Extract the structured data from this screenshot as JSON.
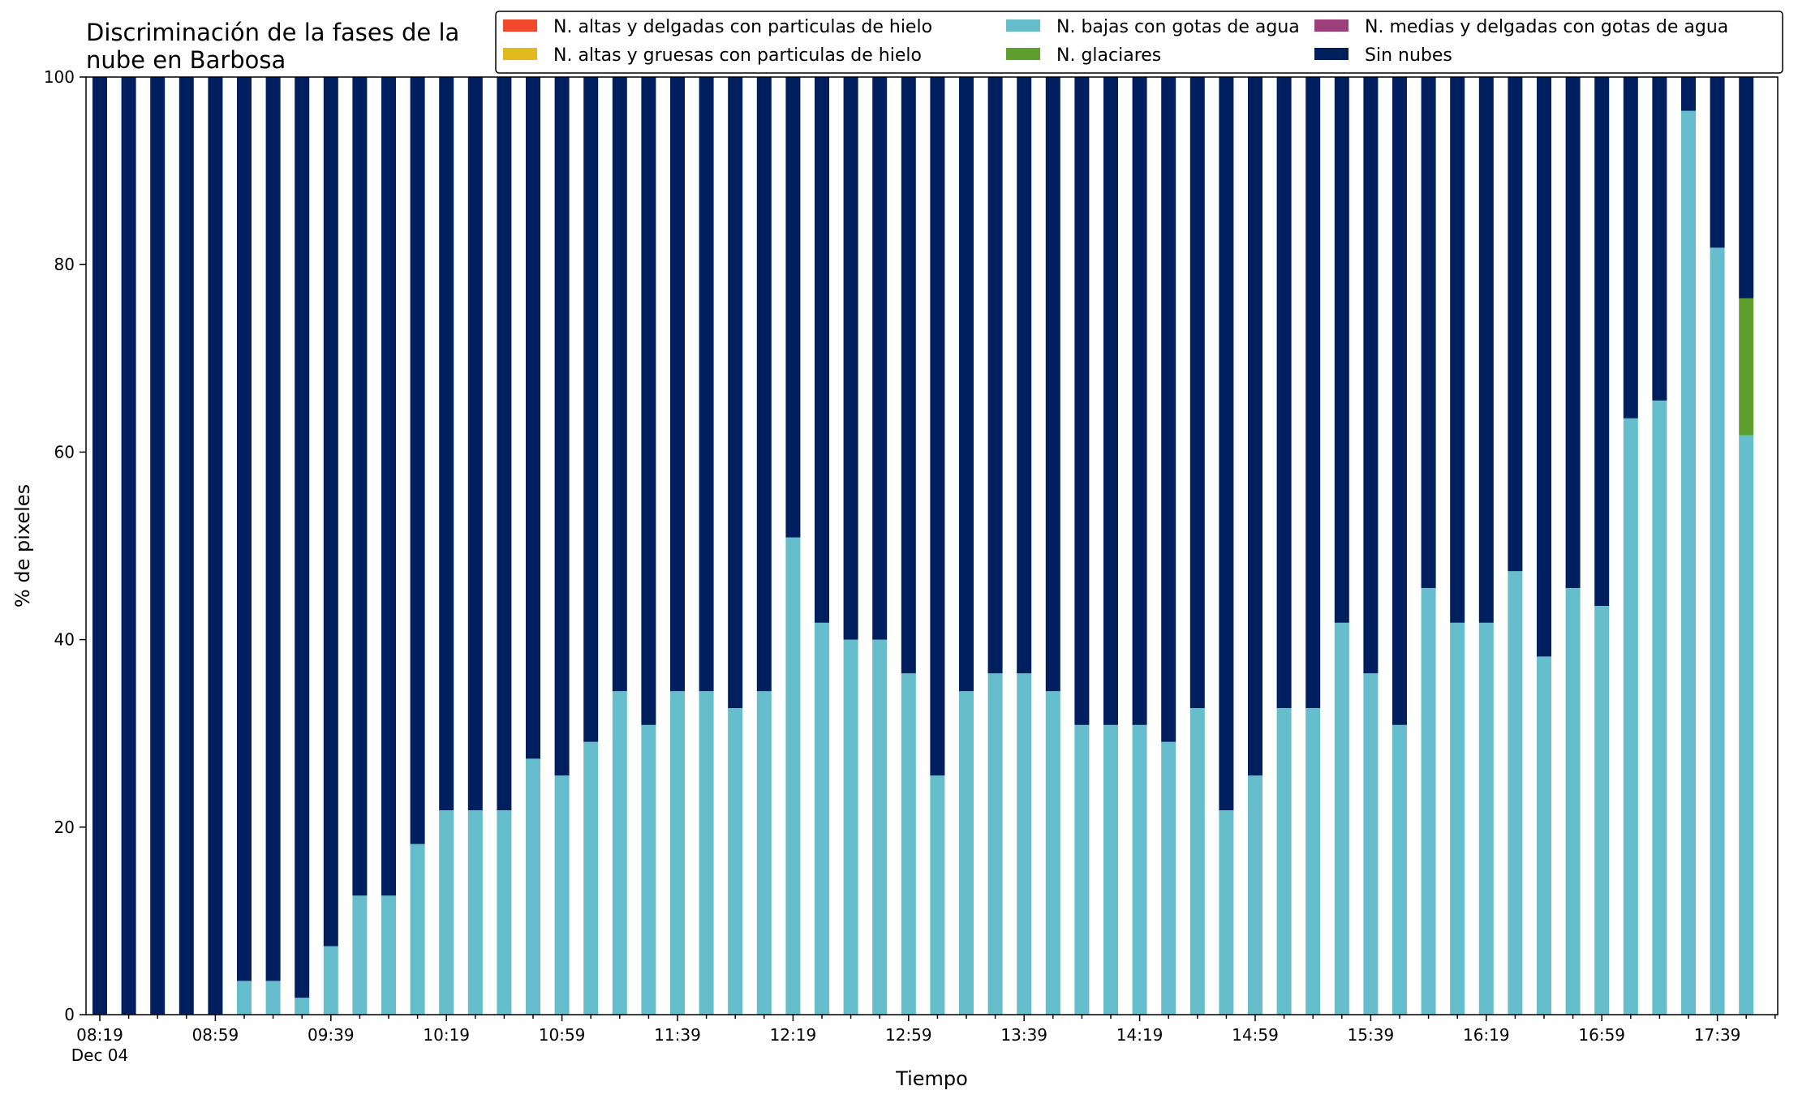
{
  "chart_data": {
    "type": "bar",
    "stacked": true,
    "title": "Discriminación de la fases de la nube en Barbosa",
    "title_lines": [
      "Discriminación de la fases de la",
      "nube en Barbosa"
    ],
    "xlabel": "Tiempo",
    "ylabel": "% de pixeles",
    "ylim": [
      0,
      100
    ],
    "yticks": [
      0,
      20,
      40,
      60,
      80,
      100
    ],
    "x_start_time": "08:19",
    "x_interval_minutes": 10,
    "x_tick_labels": [
      "08:19",
      "08:59",
      "09:39",
      "10:19",
      "10:59",
      "11:39",
      "12:19",
      "12:59",
      "13:39",
      "14:19",
      "14:59",
      "15:39",
      "16:19",
      "16:59",
      "17:39"
    ],
    "x_date_label": "Dec 04",
    "legend_position": "top-right",
    "legend_columns": 3,
    "series": [
      {
        "name": "N. altas y delgadas con particulas de hielo",
        "color": "#ef4a2b",
        "values": [
          0,
          0,
          0,
          0,
          0,
          0,
          0,
          0,
          0,
          0,
          0,
          0,
          0,
          0,
          0,
          0,
          0,
          0,
          0,
          0,
          0,
          0,
          0,
          0,
          0,
          0,
          0,
          0,
          0,
          0,
          0,
          0,
          0,
          0,
          0,
          0,
          0,
          0,
          0,
          0,
          0,
          0,
          0,
          0,
          0,
          0,
          0,
          0,
          0,
          0,
          0,
          0,
          0,
          0,
          0,
          0,
          0,
          0
        ]
      },
      {
        "name": "N. altas y gruesas con particulas de hielo",
        "color": "#e4b91e",
        "values": [
          0,
          0,
          0,
          0,
          0,
          0,
          0,
          0,
          0,
          0,
          0,
          0,
          0,
          0,
          0,
          0,
          0,
          0,
          0,
          0,
          0,
          0,
          0,
          0,
          0,
          0,
          0,
          0,
          0,
          0,
          0,
          0,
          0,
          0,
          0,
          0,
          0,
          0,
          0,
          0,
          0,
          0,
          0,
          0,
          0,
          0,
          0,
          0,
          0,
          0,
          0,
          0,
          0,
          0,
          0,
          0,
          0,
          0
        ]
      },
      {
        "name": "N. bajas con gotas de agua",
        "color": "#66bdcc",
        "values": [
          0,
          0,
          0,
          0,
          0,
          3.6,
          3.6,
          1.8,
          7.3,
          12.7,
          12.7,
          18.2,
          21.8,
          21.8,
          21.8,
          27.3,
          25.5,
          29.1,
          34.5,
          30.9,
          34.5,
          34.5,
          32.7,
          34.5,
          50.9,
          41.8,
          40,
          40,
          36.4,
          25.5,
          34.5,
          36.4,
          36.4,
          34.5,
          30.9,
          30.9,
          30.9,
          29.1,
          32.7,
          21.8,
          25.5,
          32.7,
          32.7,
          41.8,
          36.4,
          30.9,
          45.5,
          41.8,
          41.8,
          47.3,
          38.2,
          45.5,
          43.6,
          63.6,
          65.5,
          96.4,
          81.8,
          61.8
        ]
      },
      {
        "name": "N. glaciares",
        "color": "#5f9f2e",
        "values": [
          0,
          0,
          0,
          0,
          0,
          0,
          0,
          0,
          0,
          0,
          0,
          0,
          0,
          0,
          0,
          0,
          0,
          0,
          0,
          0,
          0,
          0,
          0,
          0,
          0,
          0,
          0,
          0,
          0,
          0,
          0,
          0,
          0,
          0,
          0,
          0,
          0,
          0,
          0,
          0,
          0,
          0,
          0,
          0,
          0,
          0,
          0,
          0,
          0,
          0,
          0,
          0,
          0,
          0,
          0,
          0,
          0,
          14.6
        ]
      },
      {
        "name": "N. medias y delgadas con gotas de agua",
        "color": "#9d3f7b",
        "values": [
          0,
          0,
          0,
          0,
          0,
          0,
          0,
          0,
          0,
          0,
          0,
          0,
          0,
          0,
          0,
          0,
          0,
          0,
          0,
          0,
          0,
          0,
          0,
          0,
          0,
          0,
          0,
          0,
          0,
          0,
          0,
          0,
          0,
          0,
          0,
          0,
          0,
          0,
          0,
          0,
          0,
          0,
          0,
          0,
          0,
          0,
          0,
          0,
          0,
          0,
          0,
          0,
          0,
          0,
          0,
          0,
          0,
          0
        ]
      },
      {
        "name": "Sin nubes",
        "color": "#001f5f",
        "values": [
          100,
          100,
          100,
          100,
          100,
          96.4,
          96.4,
          98.2,
          92.7,
          87.3,
          87.3,
          81.8,
          78.2,
          78.2,
          78.2,
          72.7,
          74.5,
          70.9,
          65.5,
          69.1,
          65.5,
          65.5,
          67.3,
          65.5,
          49.1,
          58.2,
          60,
          60,
          63.6,
          74.5,
          65.5,
          63.6,
          63.6,
          65.5,
          69.1,
          69.1,
          69.1,
          70.9,
          67.3,
          78.2,
          74.5,
          67.3,
          67.3,
          58.2,
          63.6,
          69.1,
          54.5,
          58.2,
          58.2,
          52.7,
          61.8,
          54.5,
          56.4,
          36.4,
          34.5,
          3.6,
          18.2,
          23.6
        ]
      }
    ],
    "legend_order": [
      "N. altas y delgadas con particulas de hielo",
      "N. bajas con gotas de agua",
      "N. medias y delgadas con gotas de agua",
      "N. altas y gruesas con particulas de hielo",
      "N. glaciares",
      "Sin nubes"
    ]
  }
}
